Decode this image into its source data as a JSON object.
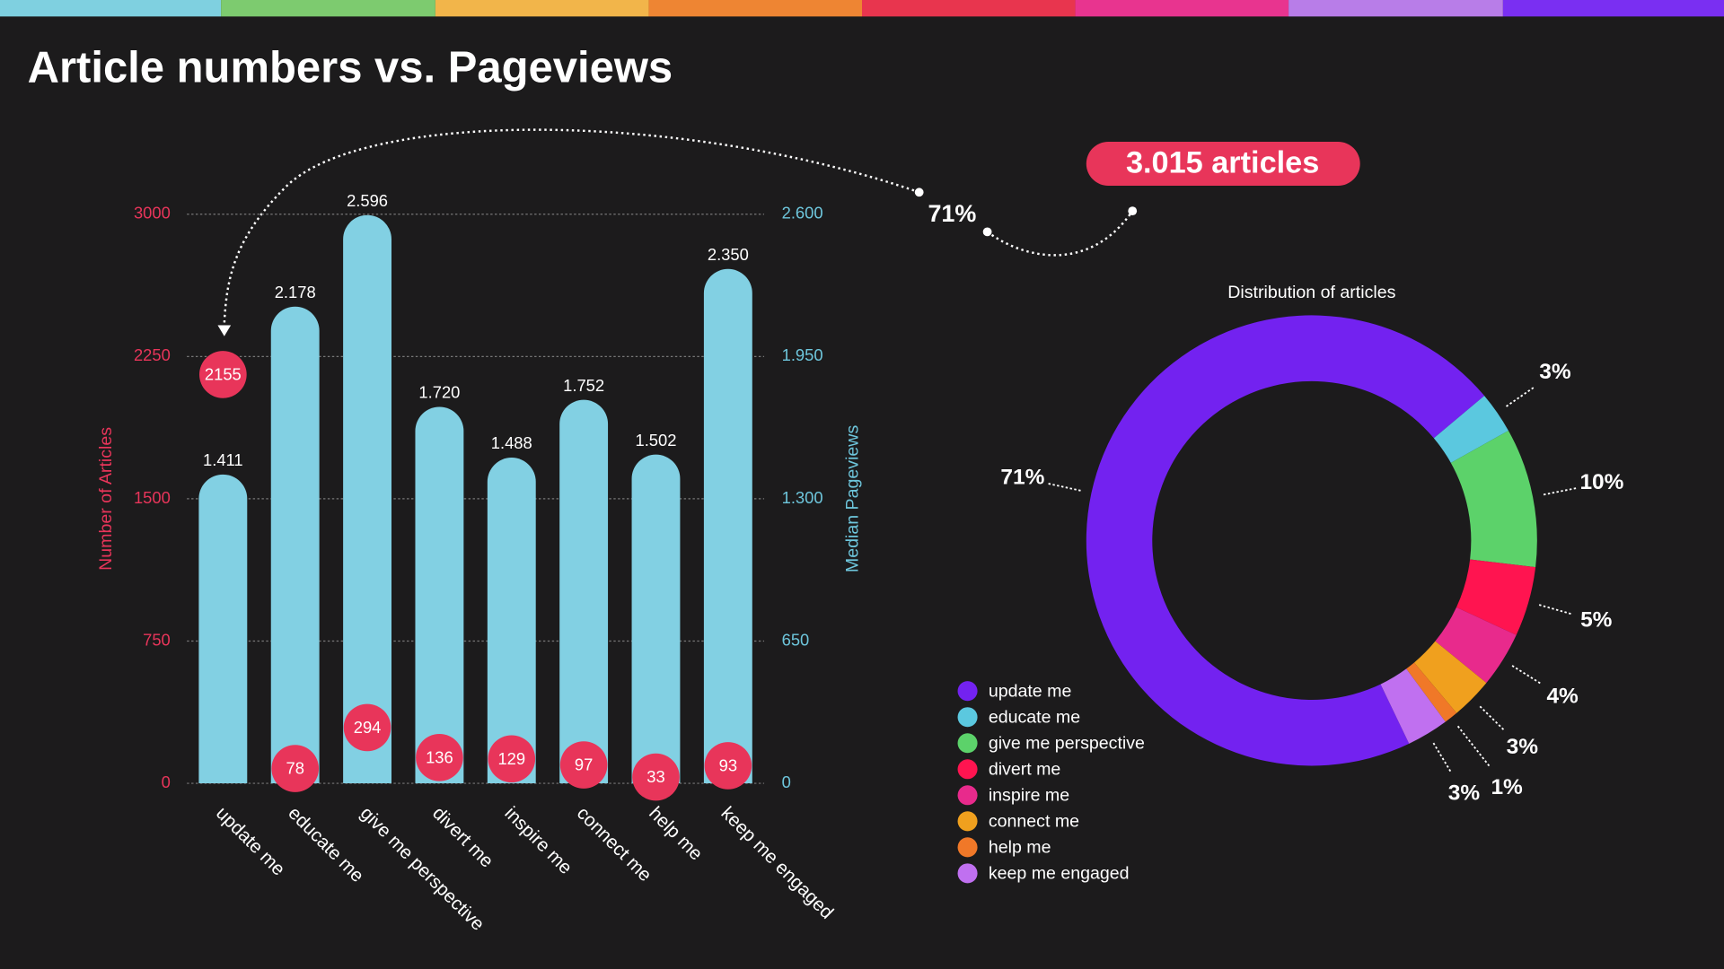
{
  "title": "Article numbers vs. Pageviews",
  "annotations": {
    "total_badge": "3.015 articles",
    "callout": "71%"
  },
  "chart_data": [
    {
      "type": "bar",
      "categories": [
        "update me",
        "educate me",
        "give me perspective",
        "divert me",
        "inspire me",
        "connect me",
        "help me",
        "keep me engaged"
      ],
      "ylabel": "Number of Articles",
      "y2label": "Median Pageviews",
      "ylim": [
        0,
        3000
      ],
      "yticks": [
        0,
        750,
        1500,
        2250,
        3000
      ],
      "y2lim": [
        0,
        2600
      ],
      "y2ticks": [
        0,
        650,
        {
          "value": 1300,
          "label": "1.300"
        },
        {
          "value": 1950,
          "label": "1.950"
        },
        {
          "value": 2600,
          "label": "2.600"
        }
      ],
      "grid": true,
      "series": [
        {
          "color": "#82d0e3",
          "axis": "y2",
          "values": [
            1411,
            2178,
            2596,
            1720,
            1488,
            1752,
            1502,
            2350
          ],
          "value_labels": [
            "1.411",
            "2.178",
            "2.596",
            "1.720",
            "1.488",
            "1.752",
            "1.502",
            "2.350"
          ]
        },
        {
          "color": "#e8355a",
          "marker": "circle",
          "values": [
            2155,
            78,
            294,
            136,
            129,
            97,
            33,
            93
          ]
        }
      ]
    },
    {
      "type": "donut",
      "title": "Distribution of articles",
      "categories": [
        "update me",
        "educate me",
        "give me perspective",
        "divert me",
        "inspire me",
        "connect me",
        "help me",
        "keep me engaged"
      ],
      "values": [
        71,
        3,
        10,
        5,
        4,
        3,
        1,
        3
      ],
      "value_labels": [
        "71%",
        "3%",
        "10%",
        "5%",
        "4%",
        "3%",
        "1%",
        "3%"
      ],
      "colors": [
        "#7322f0",
        "#5bc8df",
        "#5cd26a",
        "#ff1450",
        "#e82a8c",
        "#f0a01e",
        "#f07828",
        "#c070f0"
      ],
      "legend": "bottom-left"
    }
  ]
}
